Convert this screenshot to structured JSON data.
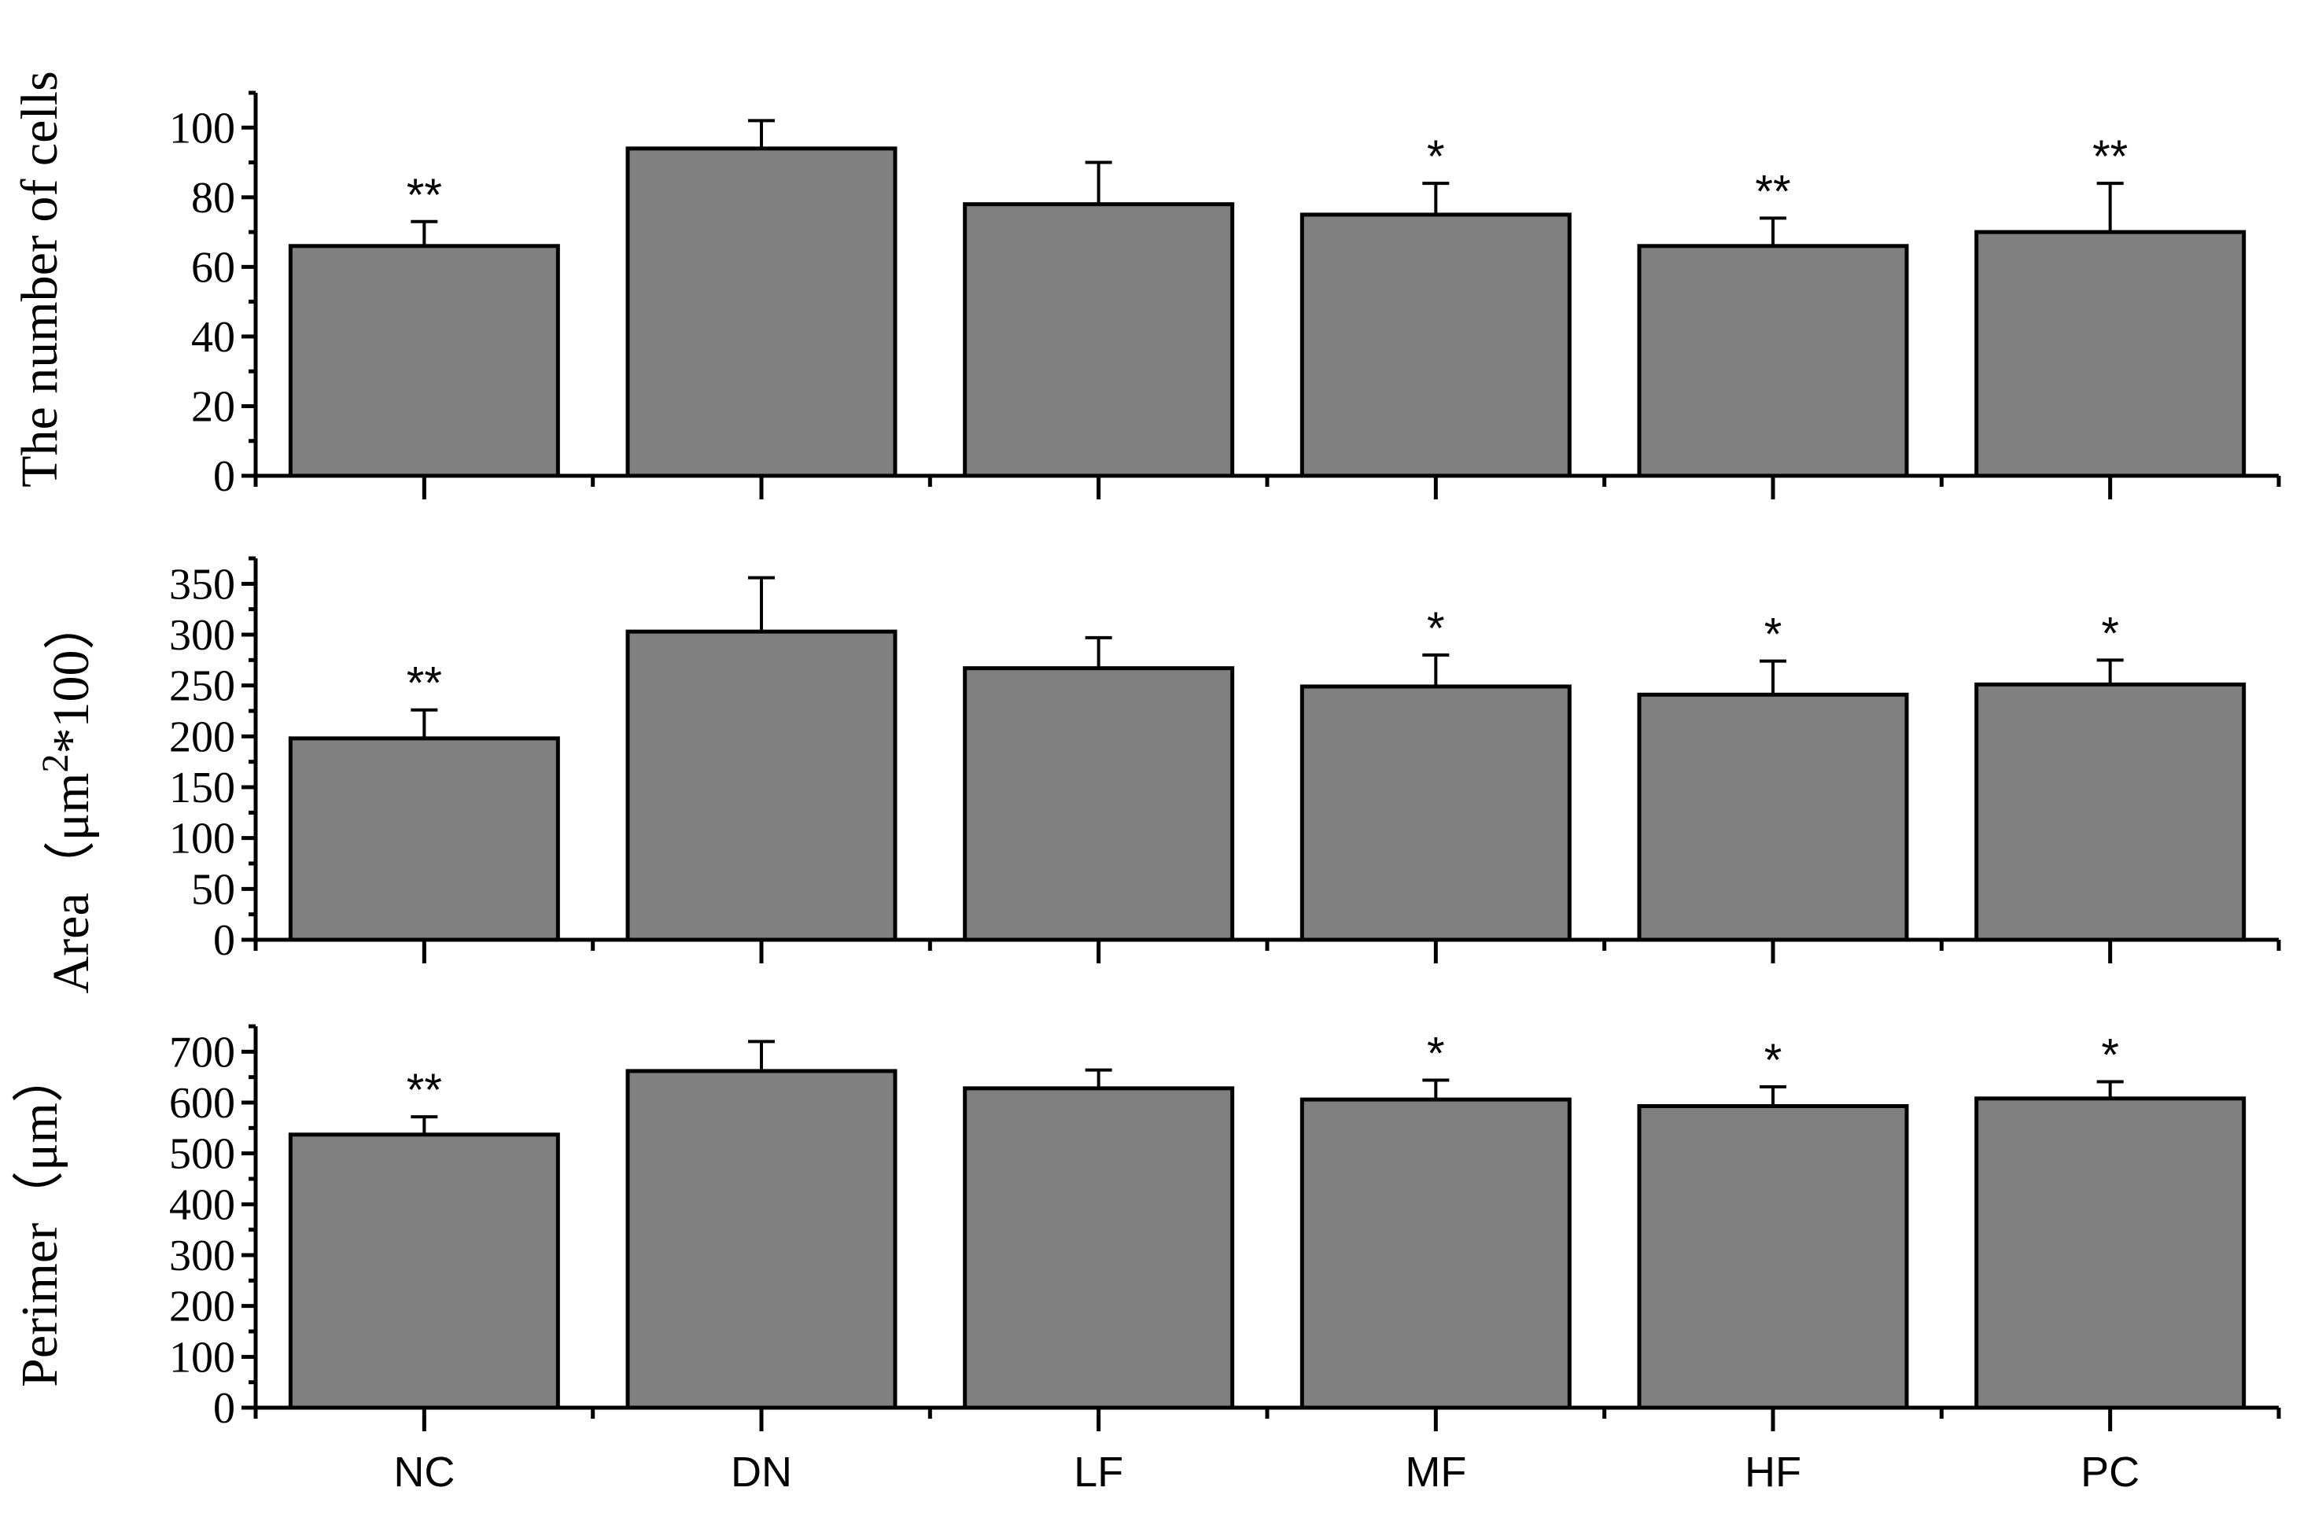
{
  "chart_data": [
    {
      "type": "bar",
      "ylabel": "The number of cells",
      "ylabel_sup": "",
      "ylabel_suffix": "",
      "categories": [
        "NC",
        "DN",
        "LF",
        "MF",
        "HF",
        "PC"
      ],
      "values": [
        66,
        94,
        78,
        75,
        66,
        70
      ],
      "errors": [
        7,
        8,
        12,
        9,
        8,
        14
      ],
      "significance": [
        "**",
        "",
        "",
        "*",
        "**",
        "**"
      ],
      "ylim": [
        0,
        110
      ],
      "yticks": [
        0,
        20,
        40,
        60,
        80,
        100
      ],
      "minor_step": 10
    },
    {
      "type": "bar",
      "ylabel": "Area（μm",
      "ylabel_sup": "2",
      "ylabel_suffix": "*100）",
      "categories": [
        "NC",
        "DN",
        "LF",
        "MF",
        "HF",
        "PC"
      ],
      "values": [
        198,
        303,
        267,
        249,
        241,
        251
      ],
      "errors": [
        28,
        53,
        30,
        31,
        33,
        24
      ],
      "significance": [
        "**",
        "",
        "",
        "*",
        "*",
        "*"
      ],
      "ylim": [
        0,
        375
      ],
      "yticks": [
        0,
        50,
        100,
        150,
        200,
        250,
        300,
        350
      ],
      "minor_step": 25
    },
    {
      "type": "bar",
      "ylabel": "Perimer（μm）",
      "ylabel_sup": "",
      "ylabel_suffix": "",
      "categories": [
        "NC",
        "DN",
        "LF",
        "MF",
        "HF",
        "PC"
      ],
      "values": [
        537,
        662,
        628,
        606,
        593,
        608
      ],
      "errors": [
        35,
        58,
        36,
        38,
        38,
        33
      ],
      "significance": [
        "**",
        "",
        "",
        "*",
        "*",
        "*"
      ],
      "ylim": [
        0,
        750
      ],
      "yticks": [
        0,
        100,
        200,
        300,
        400,
        500,
        600,
        700
      ],
      "minor_step": 50
    }
  ],
  "colors": {
    "bar_fill": "#808080",
    "stroke": "#000000"
  }
}
